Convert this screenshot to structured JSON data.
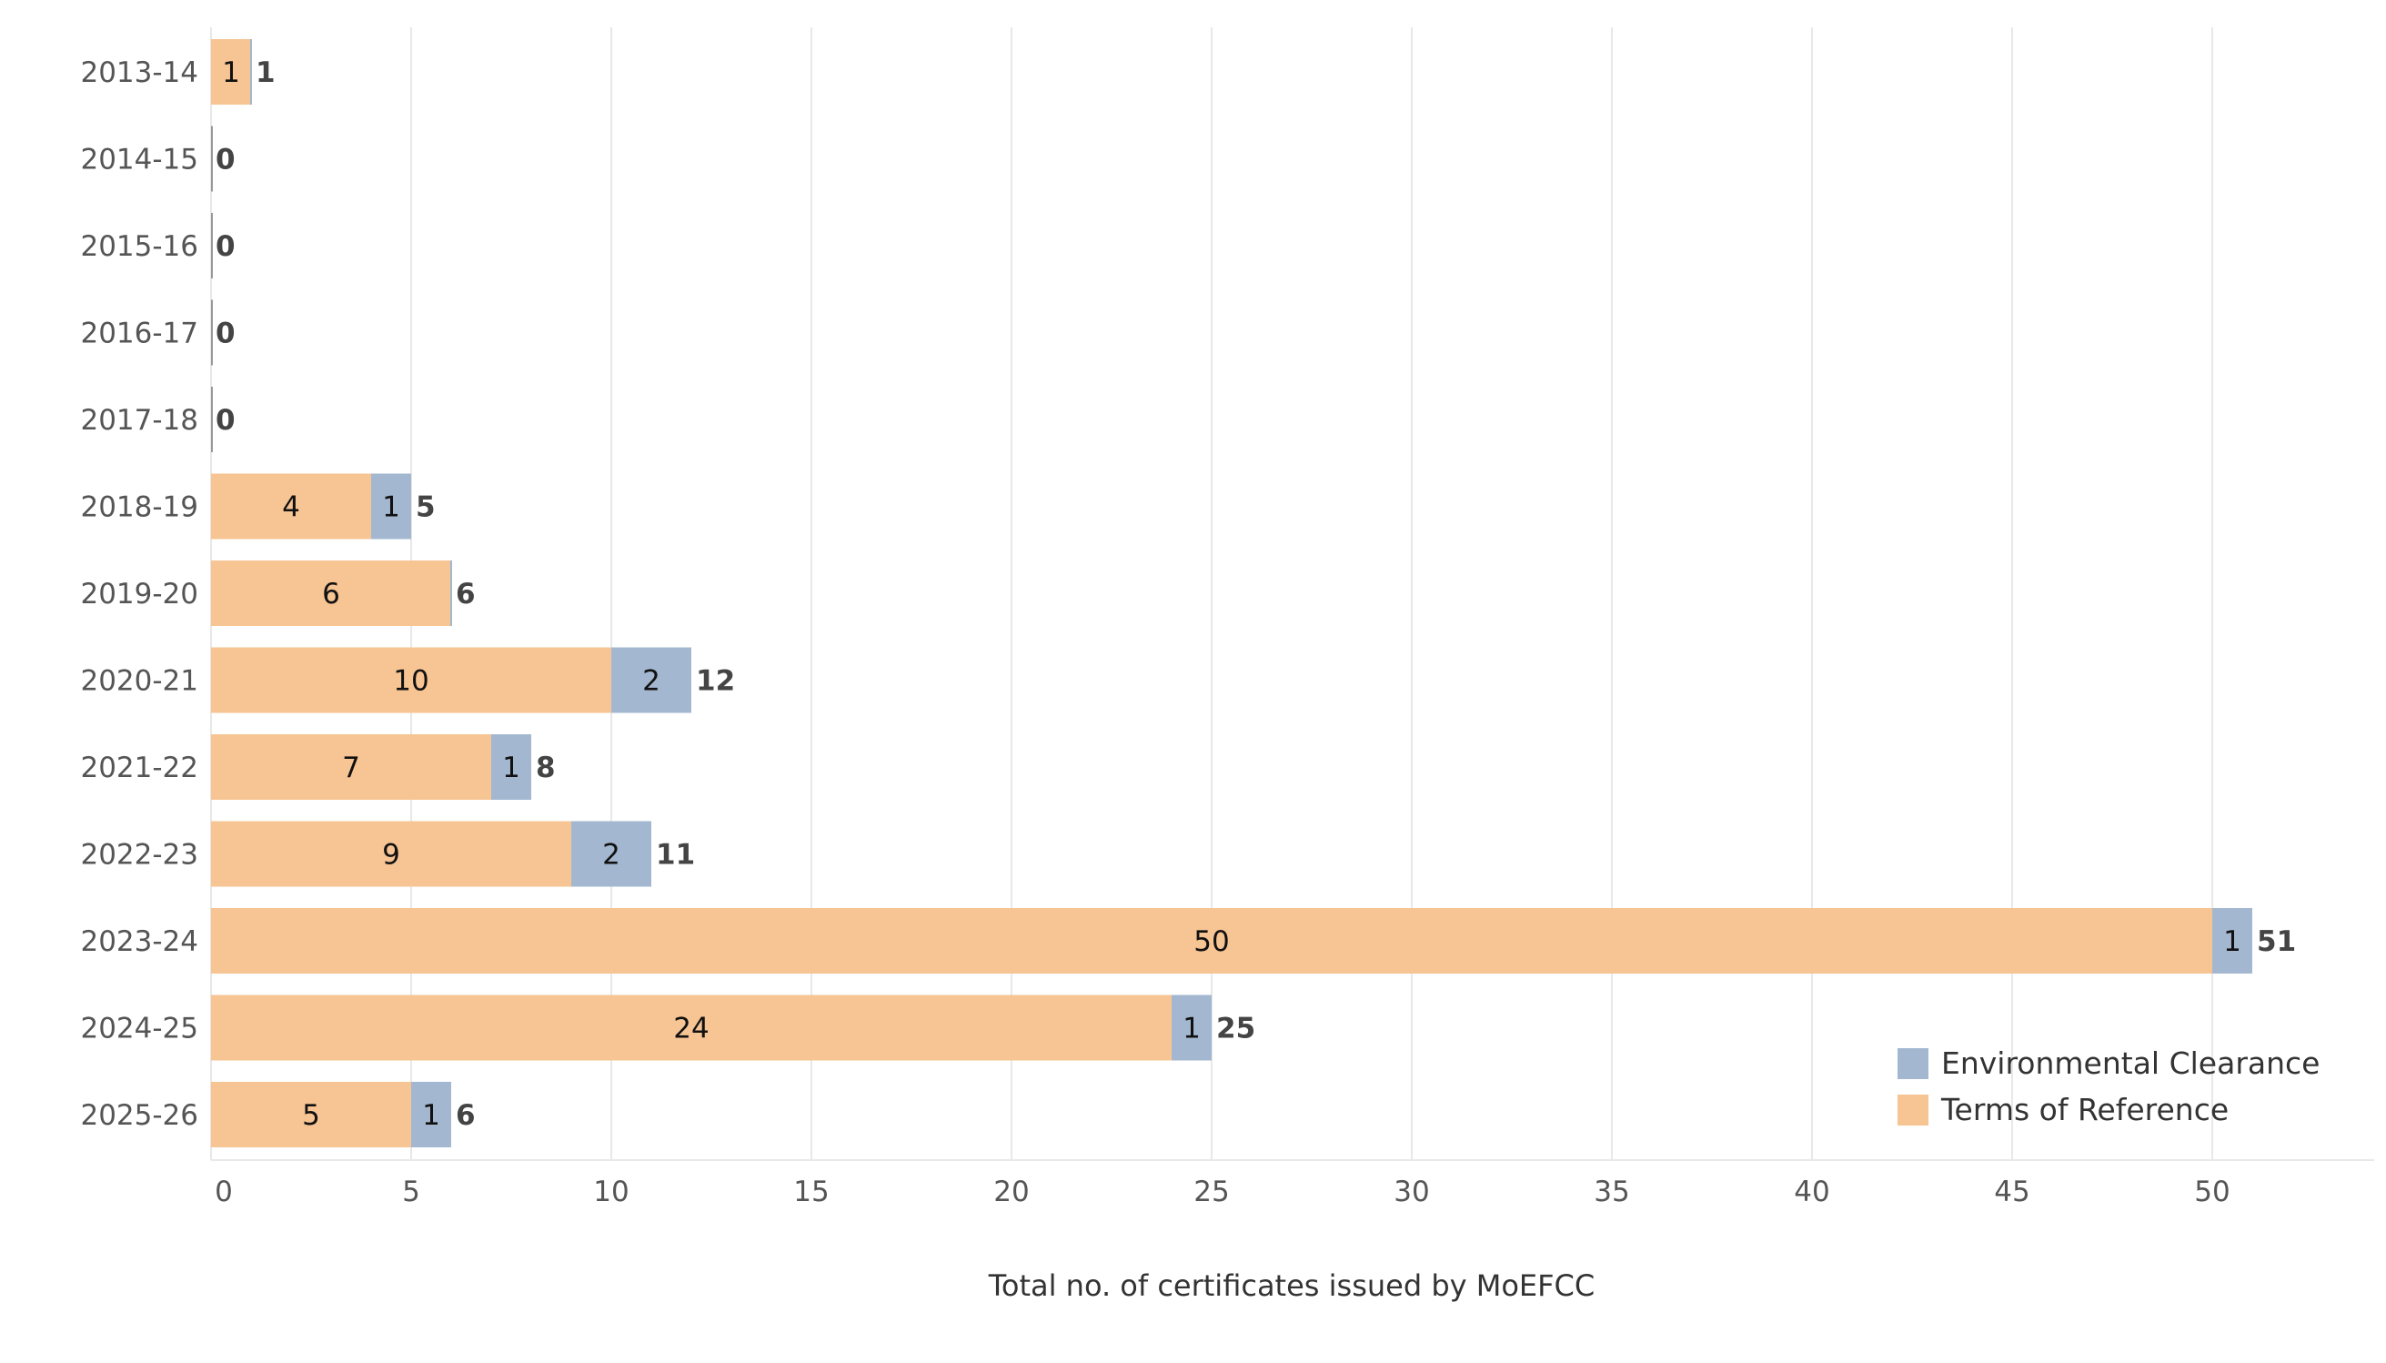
{
  "chart_data": {
    "type": "bar",
    "orientation": "horizontal",
    "stacked": true,
    "categories": [
      "2013-14",
      "2014-15",
      "2015-16",
      "2016-17",
      "2017-18",
      "2018-19",
      "2019-20",
      "2020-21",
      "2021-22",
      "2022-23",
      "2023-24",
      "2024-25",
      "2025-26"
    ],
    "series": [
      {
        "name": "Terms of Reference",
        "color": "#f7c493",
        "values": [
          1,
          0,
          0,
          0,
          0,
          4,
          6,
          10,
          7,
          9,
          50,
          24,
          5
        ]
      },
      {
        "name": "Environmental Clearance",
        "color": "#a3b8d0",
        "values": [
          0,
          0,
          0,
          0,
          0,
          1,
          0,
          2,
          1,
          2,
          1,
          1,
          1
        ]
      }
    ],
    "totals": [
      1,
      0,
      0,
      0,
      0,
      5,
      6,
      12,
      8,
      11,
      51,
      25,
      6
    ],
    "segment_labels_tor": [
      "1",
      "",
      "",
      "",
      "",
      "4",
      "6",
      "10",
      "7",
      "9",
      "50",
      "24",
      "5"
    ],
    "segment_labels_ec": [
      "",
      "",
      "",
      "",
      "",
      "1",
      "",
      "2",
      "1",
      "2",
      "1",
      "1",
      "1"
    ],
    "x_ticks": [
      0,
      5,
      10,
      15,
      20,
      25,
      30,
      35,
      40,
      45,
      50
    ],
    "xlim": [
      0,
      53.5
    ],
    "xlabel": "Total no. of certificates issued by MoEFCC",
    "ylabel": "",
    "title": "",
    "grid": "vertical",
    "legend": {
      "placement": "bottom-right",
      "entries": [
        "Environmental Clearance",
        "Terms of Reference"
      ]
    }
  }
}
